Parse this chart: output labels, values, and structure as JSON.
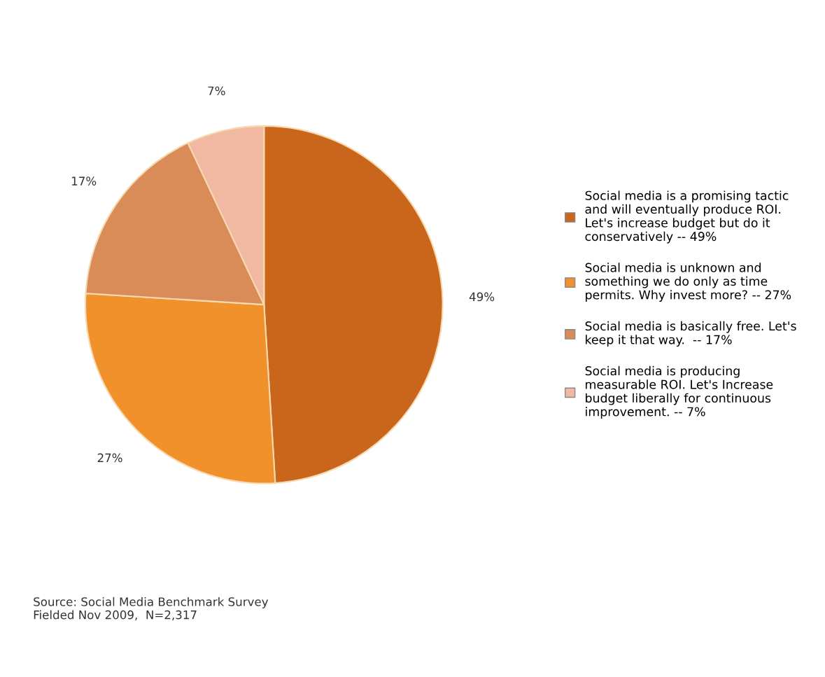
{
  "chart_data": {
    "type": "pie",
    "categories": [
      "Social media is a promising tactic\nand will eventually produce ROI.\nLet's increase budget but do it\nconservatively -- 49%",
      "Social media is unknown and\nsomething we do only as time\npermits. Why invest more? -- 27%",
      "Social media is basically free. Let's\nkeep it that way.  -- 17%",
      "Social media is producing\nmeasurable ROI. Let's Increase\nbudget liberally for continuous\nimprovement. -- 7%"
    ],
    "values": [
      49,
      27,
      17,
      7
    ],
    "colors": [
      "#c9661c",
      "#f0912c",
      "#d98c58",
      "#f2b9a2"
    ],
    "value_labels": [
      "49%",
      "27%",
      "17%",
      "7%"
    ],
    "legend": "right",
    "annotations": [
      "Source: Social Media Benchmark Survey\nFielded Nov 2009,  N=2,317"
    ]
  }
}
